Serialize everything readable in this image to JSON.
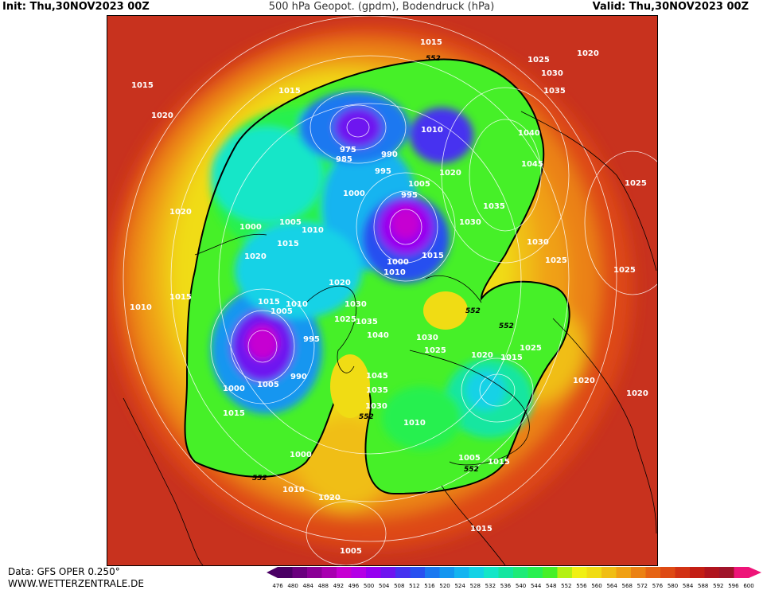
{
  "header": {
    "init": "Init: Thu,30NOV2023 00Z",
    "title": "500 hPa Geopot. (gpdm), Bodendruck (hPa)",
    "valid": "Valid: Thu,30NOV2023 00Z"
  },
  "footer": {
    "data_source": "Data: GFS OPER 0.250°",
    "website": "WWW.WETTERZENTRALE.DE"
  },
  "legend": {
    "values": [
      "476",
      "480",
      "484",
      "488",
      "492",
      "496",
      "500",
      "504",
      "508",
      "512",
      "516",
      "520",
      "524",
      "528",
      "532",
      "536",
      "540",
      "544",
      "548",
      "552",
      "556",
      "560",
      "564",
      "568",
      "572",
      "576",
      "580",
      "584",
      "588",
      "592",
      "596",
      "600"
    ],
    "colors": [
      "#4a0064",
      "#6a007e",
      "#8a0096",
      "#a800b0",
      "#c600d2",
      "#b400e6",
      "#9600f0",
      "#6e14f0",
      "#4632f0",
      "#2850f0",
      "#1a78f0",
      "#1496f0",
      "#14b4f0",
      "#14d2e6",
      "#14e6c8",
      "#14e6a0",
      "#1eeb78",
      "#28f050",
      "#46f028",
      "#b4f014",
      "#f0f014",
      "#f0dc14",
      "#f0be14",
      "#f0a014",
      "#eb8214",
      "#e66414",
      "#de4a14",
      "#d23214",
      "#c31e14",
      "#b0141e",
      "#a0142a",
      "#ee1478"
    ]
  },
  "map": {
    "contour_552_labels": [
      "552",
      "552",
      "552",
      "552",
      "552",
      "552"
    ],
    "pressure_labels": [
      "1015",
      "1025",
      "1020",
      "1015",
      "1030",
      "1015",
      "1035",
      "1020",
      "1040",
      "975",
      "990",
      "1010",
      "985",
      "995",
      "1045",
      "1005",
      "1020",
      "1025",
      "1000",
      "995",
      "1020",
      "1035",
      "1000",
      "1005",
      "1010",
      "1030",
      "1015",
      "1020",
      "1030",
      "1000",
      "1010",
      "1025",
      "1015",
      "1025",
      "1010",
      "1015",
      "1030",
      "1035",
      "1040",
      "1005",
      "1010",
      "1025",
      "1015",
      "1020",
      "1025",
      "1030",
      "1015",
      "995",
      "1020",
      "1020",
      "1045",
      "1000",
      "990",
      "1005",
      "1035",
      "1025",
      "1030",
      "1015",
      "1010",
      "1005",
      "1015",
      "1000",
      "1020",
      "1010",
      "1020",
      "1015",
      "1005"
    ]
  }
}
